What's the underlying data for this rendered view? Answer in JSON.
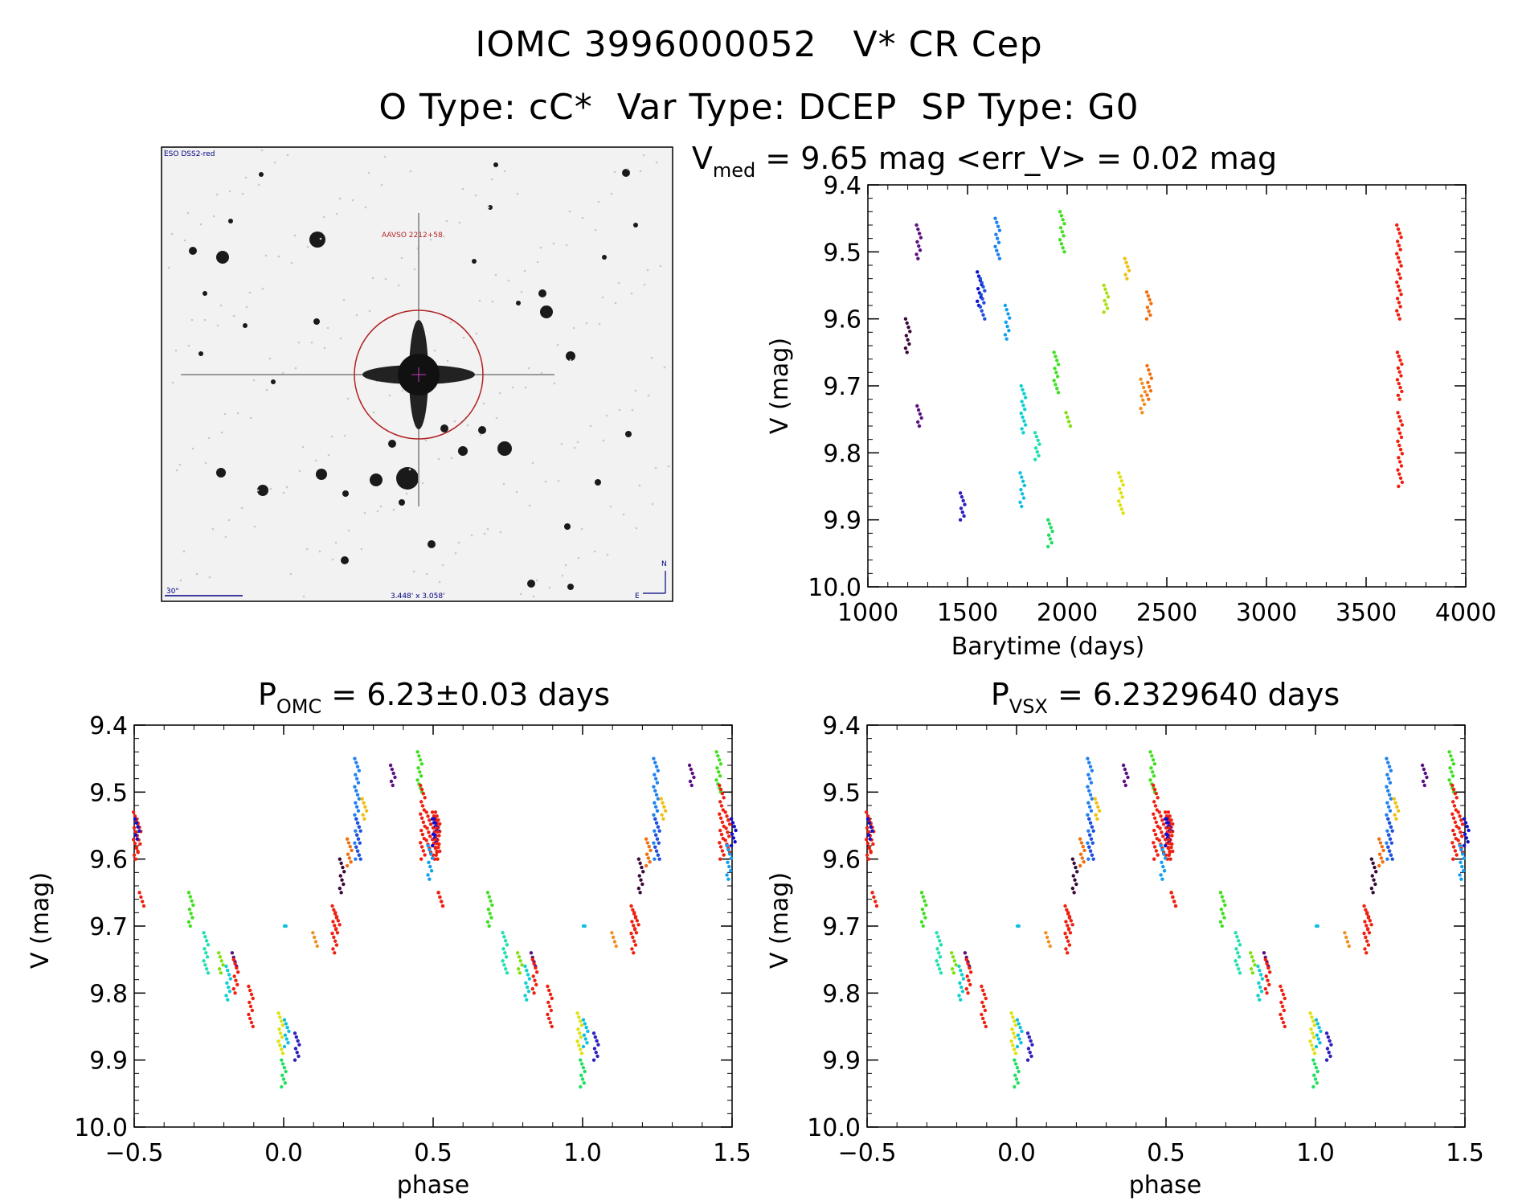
{
  "header": {
    "line1": "IOMC 3996000052   V* CR Cep",
    "line2": "O Type: cC*  Var Type: DCEP  SP Type: G0"
  },
  "image_panel": {
    "survey_label": "ESO DSS2-red",
    "target_label": "AAVSO 2212+58",
    "scale_label": "30\"",
    "fov_label": "3.448' x 3.058'",
    "north_label": "N",
    "east_label": "E",
    "marker_color": "#b22222"
  },
  "panels": {
    "lightcurve": {
      "title_main": "V",
      "title_sub": "med",
      "title_rest": " = 9.65 mag <err_V> = 0.02 mag",
      "xlabel": "Barytime (days)",
      "ylabel": "V (mag)"
    },
    "phase_omc": {
      "title_main": "P",
      "title_sub": "OMC",
      "title_rest": " = 6.23±0.03 days",
      "xlabel": "phase",
      "ylabel": "V (mag)"
    },
    "phase_vsx": {
      "title_main": "P",
      "title_sub": "VSX",
      "title_rest": " = 6.2329640 days",
      "xlabel": "phase",
      "ylabel": "V (mag)"
    }
  },
  "chart_data": [
    {
      "type": "scatter",
      "name": "lightcurve",
      "xlabel": "Barytime (days)",
      "ylabel": "V (mag)",
      "xlim": [
        1000,
        4000
      ],
      "ylim": [
        10.0,
        9.4
      ],
      "y_inverted": true,
      "xticks": [
        1000,
        1500,
        2000,
        2500,
        3000,
        3500,
        4000
      ],
      "xtick_labels": [
        "1000",
        "1500",
        "2000",
        "2500",
        "3000",
        "3500",
        "4000"
      ],
      "yticks": [
        9.4,
        9.5,
        9.6,
        9.7,
        9.8,
        9.9,
        10.0
      ],
      "ytick_labels": [
        "9.4",
        "9.5",
        "9.6",
        "9.7",
        "9.8",
        "9.9",
        "10.0"
      ],
      "groups": [
        {
          "x": 1200,
          "color": "#3a0a3a",
          "ymin": 9.6,
          "ymax": 9.65
        },
        {
          "x": 1255,
          "color": "#5a1080",
          "ymin": 9.46,
          "ymax": 9.51
        },
        {
          "x": 1258,
          "color": "#5a1080",
          "ymin": 9.73,
          "ymax": 9.76
        },
        {
          "x": 1475,
          "color": "#3020c0",
          "ymin": 9.86,
          "ymax": 9.9
        },
        {
          "x": 1560,
          "color": "#1010d0",
          "ymin": 9.53,
          "ymax": 9.58
        },
        {
          "x": 1575,
          "color": "#2050e0",
          "ymin": 9.54,
          "ymax": 9.6
        },
        {
          "x": 1650,
          "color": "#2080f0",
          "ymin": 9.45,
          "ymax": 9.51
        },
        {
          "x": 1700,
          "color": "#10a0f0",
          "ymin": 9.58,
          "ymax": 9.63
        },
        {
          "x": 1775,
          "color": "#10c0e0",
          "ymin": 9.83,
          "ymax": 9.88
        },
        {
          "x": 1780,
          "color": "#10d0d0",
          "ymin": 9.7,
          "ymax": 9.77
        },
        {
          "x": 1850,
          "color": "#20e0b0",
          "ymin": 9.77,
          "ymax": 9.81
        },
        {
          "x": 1915,
          "color": "#20e060",
          "ymin": 9.9,
          "ymax": 9.94
        },
        {
          "x": 1945,
          "color": "#40e020",
          "ymin": 9.65,
          "ymax": 9.71
        },
        {
          "x": 1975,
          "color": "#40e020",
          "ymin": 9.44,
          "ymax": 9.5
        },
        {
          "x": 2005,
          "color": "#80e010",
          "ymin": 9.74,
          "ymax": 9.76
        },
        {
          "x": 2195,
          "color": "#a8e010",
          "ymin": 9.55,
          "ymax": 9.59
        },
        {
          "x": 2270,
          "color": "#e0e010",
          "ymin": 9.83,
          "ymax": 9.89
        },
        {
          "x": 2300,
          "color": "#f0c010",
          "ymin": 9.51,
          "ymax": 9.54
        },
        {
          "x": 2380,
          "color": "#f09020",
          "ymin": 9.69,
          "ymax": 9.74
        },
        {
          "x": 2410,
          "color": "#f07010",
          "ymin": 9.56,
          "ymax": 9.6
        },
        {
          "x": 2412,
          "color": "#f07010",
          "ymin": 9.67,
          "ymax": 9.72
        },
        {
          "x": 3665,
          "color": "#f02010",
          "ymin": 9.46,
          "ymax": 9.6
        },
        {
          "x": 3668,
          "color": "#f02010",
          "ymin": 9.65,
          "ymax": 9.72
        },
        {
          "x": 3670,
          "color": "#f02010",
          "ymin": 9.74,
          "ymax": 9.85
        }
      ]
    },
    {
      "type": "scatter",
      "name": "phase_omc",
      "xlabel": "phase",
      "ylabel": "V (mag)",
      "xlim": [
        -0.5,
        1.5
      ],
      "ylim": [
        10.0,
        9.4
      ],
      "y_inverted": true,
      "xticks": [
        -0.5,
        0.0,
        0.5,
        1.0,
        1.5
      ],
      "xtick_labels": [
        "−0.5",
        "0.0",
        "0.5",
        "1.0",
        "1.5"
      ],
      "yticks": [
        9.4,
        9.5,
        9.6,
        9.7,
        9.8,
        9.9,
        10.0
      ],
      "ytick_labels": [
        "9.4",
        "9.5",
        "9.6",
        "9.7",
        "9.8",
        "9.9",
        "10.0"
      ],
      "period_shift": 1.0,
      "groups": [
        {
          "x": -0.495,
          "color": "#f02010",
          "ymin": 9.53,
          "ymax": 9.6
        },
        {
          "x": -0.485,
          "color": "#f02010",
          "ymin": 9.54,
          "ymax": 9.59
        },
        {
          "x": -0.49,
          "color": "#1010d0",
          "ymin": 9.54,
          "ymax": 9.57
        },
        {
          "x": -0.475,
          "color": "#f02010",
          "ymin": 9.65,
          "ymax": 9.67
        },
        {
          "x": -0.31,
          "color": "#40e020",
          "ymin": 9.65,
          "ymax": 9.7
        },
        {
          "x": -0.26,
          "color": "#20e0b0",
          "ymin": 9.71,
          "ymax": 9.77
        },
        {
          "x": -0.21,
          "color": "#80e010",
          "ymin": 9.74,
          "ymax": 9.77
        },
        {
          "x": -0.185,
          "color": "#10d0d0",
          "ymin": 9.76,
          "ymax": 9.81
        },
        {
          "x": -0.165,
          "color": "#5a1080",
          "ymin": 9.74,
          "ymax": 9.76
        },
        {
          "x": -0.16,
          "color": "#f02010",
          "ymin": 9.75,
          "ymax": 9.8
        },
        {
          "x": -0.11,
          "color": "#f02010",
          "ymin": 9.79,
          "ymax": 9.85
        },
        {
          "x": -0.01,
          "color": "#e0e010",
          "ymin": 9.83,
          "ymax": 9.89
        },
        {
          "x": 0.0,
          "color": "#20e060",
          "ymin": 9.9,
          "ymax": 9.94
        },
        {
          "x": 0.01,
          "color": "#10c0e0",
          "ymin": 9.84,
          "ymax": 9.88
        },
        {
          "x": 0.045,
          "color": "#3020c0",
          "ymin": 9.86,
          "ymax": 9.9
        },
        {
          "x": 0.01,
          "color": "#10c0e0",
          "ymin": 9.7,
          "ymax": 9.7
        },
        {
          "x": 0.105,
          "color": "#f09020",
          "ymin": 9.71,
          "ymax": 9.73
        },
        {
          "x": 0.17,
          "color": "#f02010",
          "ymin": 9.67,
          "ymax": 9.74
        },
        {
          "x": 0.18,
          "color": "#f02010",
          "ymin": 9.68,
          "ymax": 9.71
        },
        {
          "x": 0.195,
          "color": "#3a0a3a",
          "ymin": 9.6,
          "ymax": 9.65
        },
        {
          "x": 0.22,
          "color": "#f07010",
          "ymin": 9.57,
          "ymax": 9.61
        },
        {
          "x": 0.245,
          "color": "#2080f0",
          "ymin": 9.45,
          "ymax": 9.6
        },
        {
          "x": 0.25,
          "color": "#2050e0",
          "ymin": 9.54,
          "ymax": 9.6
        },
        {
          "x": 0.27,
          "color": "#f0c010",
          "ymin": 9.51,
          "ymax": 9.54
        },
        {
          "x": 0.365,
          "color": "#5a1080",
          "ymin": 9.46,
          "ymax": 9.49
        },
        {
          "x": 0.455,
          "color": "#40e020",
          "ymin": 9.44,
          "ymax": 9.5
        },
        {
          "x": 0.465,
          "color": "#f02010",
          "ymin": 9.49,
          "ymax": 9.6
        },
        {
          "x": 0.485,
          "color": "#f02010",
          "ymin": 9.53,
          "ymax": 9.59
        },
        {
          "x": 0.49,
          "color": "#10a0f0",
          "ymin": 9.58,
          "ymax": 9.63
        },
        {
          "x": 0.505,
          "color": "#1010d0",
          "ymin": 9.54,
          "ymax": 9.58
        },
        {
          "x": 0.515,
          "color": "#f02010",
          "ymin": 9.53,
          "ymax": 9.6
        },
        {
          "x": 0.525,
          "color": "#f02010",
          "ymin": 9.65,
          "ymax": 9.67
        }
      ]
    },
    {
      "type": "scatter",
      "name": "phase_vsx",
      "xlabel": "phase",
      "ylabel": "V (mag)",
      "xlim": [
        -0.5,
        1.5
      ],
      "ylim": [
        10.0,
        9.4
      ],
      "y_inverted": true,
      "xticks": [
        -0.5,
        0.0,
        0.5,
        1.0,
        1.5
      ],
      "xtick_labels": [
        "−0.5",
        "0.0",
        "0.5",
        "1.0",
        "1.5"
      ],
      "yticks": [
        9.4,
        9.5,
        9.6,
        9.7,
        9.8,
        9.9,
        10.0
      ],
      "ytick_labels": [
        "9.4",
        "9.5",
        "9.6",
        "9.7",
        "9.8",
        "9.9",
        "10.0"
      ],
      "period_shift": 1.0,
      "same_as": "phase_omc"
    }
  ]
}
